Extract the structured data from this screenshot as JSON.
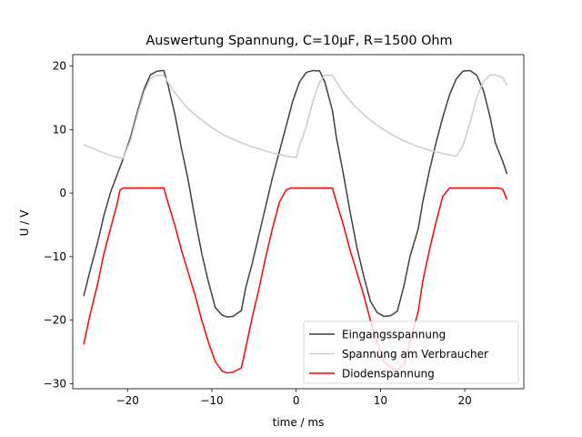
{
  "chart_data": {
    "type": "line",
    "title": "Auswertung Spannung, C=10µF, R=1500 Ohm",
    "xlabel": "time / ms",
    "ylabel": "U / V",
    "xlim": [
      -26.5,
      27
    ],
    "ylim": [
      -30.8,
      21.8
    ],
    "xticks": [
      -20,
      -10,
      0,
      10,
      20
    ],
    "yticks": [
      -30,
      -20,
      -10,
      0,
      10,
      20
    ],
    "grid": false,
    "legend_position": "lower-right",
    "series": [
      {
        "name": "Eingangsspannung",
        "color": "#3f3f3f",
        "x": [
          -25.2,
          -24.5,
          -23.5,
          -22.8,
          -22.0,
          -21.2,
          -20.5,
          -19.6,
          -18.8,
          -18.0,
          -17.3,
          -16.5,
          -15.7,
          -15.2,
          -14.4,
          -13.6,
          -12.8,
          -12.0,
          -11.2,
          -10.4,
          -9.6,
          -8.8,
          -8.2,
          -7.5,
          -6.5,
          -6.0,
          -5.2,
          -4.4,
          -3.6,
          -2.8,
          -2.0,
          -1.2,
          -0.4,
          0.4,
          1.2,
          2.0,
          2.8,
          3.4,
          4.3,
          4.8,
          5.6,
          6.4,
          7.2,
          8.0,
          8.8,
          9.6,
          10.4,
          11.2,
          12.0,
          12.8,
          13.5,
          14.5,
          15.0,
          15.8,
          16.6,
          17.4,
          18.2,
          19.0,
          19.8,
          20.6,
          21.4,
          22.2,
          23.0,
          23.6,
          24.5,
          25.0
        ],
        "values": [
          -16.2,
          -12.5,
          -7.5,
          -3.5,
          0.2,
          3.0,
          5.5,
          9.0,
          13.0,
          16.5,
          18.6,
          19.2,
          19.3,
          17.0,
          12.5,
          7.0,
          2.0,
          -4.0,
          -9.5,
          -14.0,
          -18.0,
          -19.2,
          -19.5,
          -19.4,
          -18.5,
          -15.0,
          -11.0,
          -6.5,
          -2.0,
          2.5,
          6.5,
          10.5,
          14.5,
          17.5,
          19.0,
          19.3,
          19.2,
          17.5,
          13.0,
          8.5,
          3.0,
          -3.0,
          -8.5,
          -13.0,
          -17.0,
          -18.8,
          -19.4,
          -19.3,
          -18.6,
          -14.5,
          -10.0,
          -5.5,
          -1.5,
          3.5,
          8.0,
          12.0,
          15.5,
          18.0,
          19.2,
          19.3,
          18.6,
          16.2,
          12.0,
          8.0,
          5.0,
          3.0
        ]
      },
      {
        "name": "Spannung am Verbraucher",
        "color": "#cccccc",
        "x": [
          -25.2,
          -24.0,
          -23.0,
          -22.0,
          -21.0,
          -20.5,
          -19.6,
          -18.8,
          -18.0,
          -17.3,
          -16.5,
          -15.7,
          -14.5,
          -13.0,
          -11.5,
          -10.0,
          -8.5,
          -7.0,
          -5.5,
          -4.0,
          -2.5,
          -1.0,
          0.0,
          0.4,
          1.2,
          2.0,
          2.8,
          3.4,
          4.3,
          5.5,
          7.0,
          8.5,
          10.0,
          11.5,
          13.0,
          14.5,
          16.0,
          17.5,
          19.0,
          19.8,
          20.6,
          21.4,
          22.2,
          23.0,
          23.6,
          24.5,
          25.0
        ],
        "values": [
          7.6,
          7.0,
          6.4,
          5.9,
          5.6,
          5.5,
          8.5,
          12.5,
          16.0,
          18.0,
          18.6,
          18.5,
          16.0,
          13.5,
          11.8,
          10.3,
          9.1,
          8.2,
          7.4,
          6.8,
          6.2,
          5.8,
          5.6,
          7.5,
          10.5,
          14.5,
          17.5,
          18.6,
          18.5,
          16.0,
          13.6,
          11.8,
          10.3,
          9.1,
          8.1,
          7.3,
          6.7,
          6.2,
          5.8,
          7.5,
          11.0,
          15.0,
          17.5,
          18.6,
          18.6,
          18.2,
          17.0
        ]
      },
      {
        "name": "Diodenspannung",
        "color": "#ff0000",
        "x": [
          -25.2,
          -24.5,
          -23.5,
          -22.8,
          -22.0,
          -21.2,
          -20.9,
          -20.5,
          -20.0,
          -19.0,
          -18.0,
          -17.0,
          -16.0,
          -15.7,
          -15.2,
          -14.4,
          -13.6,
          -12.8,
          -12.0,
          -11.2,
          -10.4,
          -9.6,
          -8.8,
          -8.2,
          -7.5,
          -6.5,
          -6.0,
          -5.2,
          -4.4,
          -3.6,
          -2.8,
          -2.0,
          -1.2,
          -0.6,
          -0.4,
          0.0,
          1.0,
          2.0,
          3.0,
          4.0,
          4.3,
          4.8,
          5.6,
          6.4,
          7.2,
          8.0,
          8.8,
          9.6,
          10.4,
          11.2,
          12.0,
          12.8,
          13.5,
          14.5,
          15.0,
          15.8,
          16.6,
          17.4,
          18.2,
          18.8,
          19.2,
          20.0,
          21.0,
          22.0,
          23.0,
          24.0,
          24.5,
          25.0
        ],
        "values": [
          -23.8,
          -19.5,
          -14.0,
          -9.5,
          -5.5,
          -1.5,
          0.5,
          0.8,
          0.8,
          0.8,
          0.8,
          0.8,
          0.8,
          0.8,
          -1.5,
          -5.0,
          -9.0,
          -12.5,
          -16.0,
          -20.0,
          -23.5,
          -26.5,
          -28.0,
          -28.3,
          -28.2,
          -27.5,
          -24.5,
          -19.5,
          -15.0,
          -10.0,
          -5.5,
          -1.5,
          0.5,
          0.8,
          0.8,
          0.8,
          0.8,
          0.8,
          0.8,
          0.8,
          0.8,
          -1.5,
          -5.0,
          -9.0,
          -12.5,
          -16.0,
          -20.0,
          -23.5,
          -26.5,
          -27.5,
          -27.8,
          -27.0,
          -23.5,
          -18.5,
          -14.0,
          -9.0,
          -4.5,
          -0.5,
          0.8,
          0.8,
          0.8,
          0.8,
          0.8,
          0.8,
          0.8,
          0.8,
          0.6,
          -1.0
        ]
      }
    ]
  }
}
